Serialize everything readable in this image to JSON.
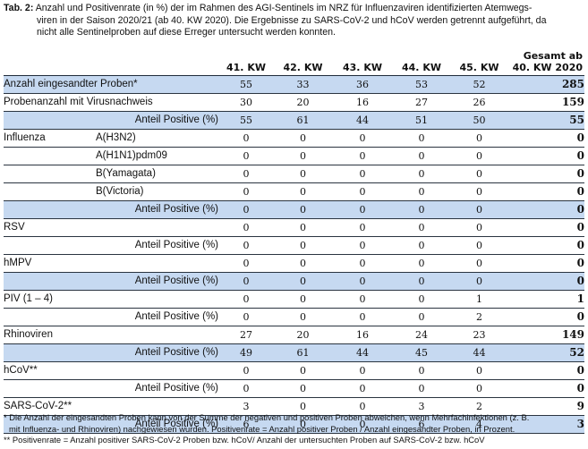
{
  "caption": {
    "label": "Tab. 2:",
    "line1": "Anzahl und Positivenrate (in %) der im Rahmen des AGI-Sentinels im NRZ für Influenzaviren identifizierten Atemwegs-",
    "line2": "viren in der Saison 2020/21 (ab 40. KW 2020). Die Ergebnisse zu SARS-CoV-2 und hCoV werden getrennt aufgeführt, da",
    "line3": "nicht alle Sentinelproben auf diese Erreger untersucht werden konnten."
  },
  "columns": [
    "41. KW",
    "42. KW",
    "43. KW",
    "44. KW",
    "45. KW"
  ],
  "total_header": {
    "line1": "Gesamt ab",
    "line2": "40. KW 2020"
  },
  "rows": [
    {
      "label": "Anzahl eingesandter Proben*",
      "sub": "",
      "values": [
        "55",
        "33",
        "36",
        "53",
        "52"
      ],
      "total": "285",
      "blue": true,
      "kind": "main"
    },
    {
      "label": "Probenanzahl mit Virusnachweis",
      "sub": "",
      "values": [
        "30",
        "20",
        "16",
        "27",
        "26"
      ],
      "total": "159",
      "blue": false,
      "kind": "main"
    },
    {
      "label": "Anteil Positive (%)",
      "sub": "",
      "values": [
        "55",
        "61",
        "44",
        "51",
        "50"
      ],
      "total": "55",
      "blue": true,
      "kind": "pos"
    },
    {
      "label": "Influenza",
      "sub": "A(H3N2)",
      "values": [
        "0",
        "0",
        "0",
        "0",
        "0"
      ],
      "total": "0",
      "blue": false,
      "kind": "group"
    },
    {
      "label": "",
      "sub": "A(H1N1)pdm09",
      "values": [
        "0",
        "0",
        "0",
        "0",
        "0"
      ],
      "total": "0",
      "blue": false,
      "kind": "group"
    },
    {
      "label": "",
      "sub": "B(Yamagata)",
      "values": [
        "0",
        "0",
        "0",
        "0",
        "0"
      ],
      "total": "0",
      "blue": false,
      "kind": "group"
    },
    {
      "label": "",
      "sub": "B(Victoria)",
      "values": [
        "0",
        "0",
        "0",
        "0",
        "0"
      ],
      "total": "0",
      "blue": false,
      "kind": "group"
    },
    {
      "label": "Anteil Positive (%)",
      "sub": "",
      "values": [
        "0",
        "0",
        "0",
        "0",
        "0"
      ],
      "total": "0",
      "blue": true,
      "kind": "pos"
    },
    {
      "label": "RSV",
      "sub": "",
      "values": [
        "0",
        "0",
        "0",
        "0",
        "0"
      ],
      "total": "0",
      "blue": false,
      "kind": "main"
    },
    {
      "label": "Anteil Positive (%)",
      "sub": "",
      "values": [
        "0",
        "0",
        "0",
        "0",
        "0"
      ],
      "total": "0",
      "blue": false,
      "kind": "pos"
    },
    {
      "label": "hMPV",
      "sub": "",
      "values": [
        "0",
        "0",
        "0",
        "0",
        "0"
      ],
      "total": "0",
      "blue": false,
      "kind": "main"
    },
    {
      "label": "Anteil Positive (%)",
      "sub": "",
      "values": [
        "0",
        "0",
        "0",
        "0",
        "0"
      ],
      "total": "0",
      "blue": true,
      "kind": "pos"
    },
    {
      "label": "PIV (1 – 4)",
      "sub": "",
      "values": [
        "0",
        "0",
        "0",
        "0",
        "1"
      ],
      "total": "1",
      "blue": false,
      "kind": "main"
    },
    {
      "label": "Anteil Positive (%)",
      "sub": "",
      "values": [
        "0",
        "0",
        "0",
        "0",
        "2"
      ],
      "total": "0",
      "blue": false,
      "kind": "pos"
    },
    {
      "label": "Rhinoviren",
      "sub": "",
      "values": [
        "27",
        "20",
        "16",
        "24",
        "23"
      ],
      "total": "149",
      "blue": false,
      "kind": "main"
    },
    {
      "label": "Anteil Positive (%)",
      "sub": "",
      "values": [
        "49",
        "61",
        "44",
        "45",
        "44"
      ],
      "total": "52",
      "blue": true,
      "kind": "pos"
    },
    {
      "label": "hCoV**",
      "sub": "",
      "values": [
        "0",
        "0",
        "0",
        "0",
        "0"
      ],
      "total": "0",
      "blue": false,
      "kind": "main"
    },
    {
      "label": "Anteil Positive (%)",
      "sub": "",
      "values": [
        "0",
        "0",
        "0",
        "0",
        "0"
      ],
      "total": "0",
      "blue": false,
      "kind": "pos"
    },
    {
      "label": "SARS-CoV-2**",
      "sub": "",
      "values": [
        "3",
        "0",
        "0",
        "3",
        "2"
      ],
      "total": "9",
      "blue": false,
      "kind": "main"
    },
    {
      "label": "Anteil Positive (%)",
      "sub": "",
      "values": [
        "6",
        "0",
        "0",
        "6",
        "4"
      ],
      "total": "3",
      "blue": true,
      "kind": "pos"
    }
  ],
  "footnotes": {
    "line1": "* Die Anzahl der eingesandten Proben kann von der Summe der negativen und positiven Proben abweichen, wenn Mehrfachinfektionen (z. B.",
    "line2": "mit Influenza- und Rhinoviren) nachgewiesen wurden. Positivenrate = Anzahl positiver Proben / Anzahl eingesandter Proben, in Prozent.",
    "line3": "** Positivenrate = Anzahl positiver SARS-CoV-2 Proben bzw. hCoV/ Anzahl der untersuchten Proben auf SARS-CoV-2 bzw. hCoV"
  }
}
